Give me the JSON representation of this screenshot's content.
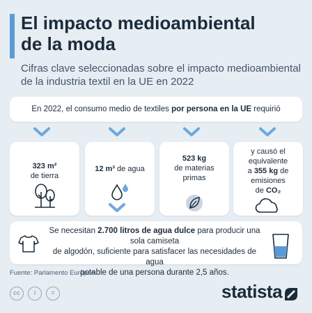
{
  "header": {
    "title_line1": "El impacto medioambiental",
    "title_line2": "de la moda",
    "subtitle_line1": "Cifras clave seleccionadas sobre el impacto medioambiental",
    "subtitle_line2": "de la industria textil en la UE en 2022"
  },
  "intro": {
    "text_before": "En 2022, el consumo medio de textiles ",
    "text_bold": "por persona en la UE",
    "text_after": " requirió"
  },
  "stats": [
    {
      "value": "323 m²",
      "label": "de tierra",
      "icon": "tree-icon"
    },
    {
      "value": "12 m³",
      "label": " de agua",
      "icon": "water-drop-icon"
    },
    {
      "value": "523 kg",
      "label_line1": "de materias",
      "label_line2": "primas",
      "icon": "leaf-icon"
    },
    {
      "line1": "y causó el",
      "line2": "equivalente",
      "line3_pre": "a ",
      "line3_bold": "355 kg",
      "line3_post": " de",
      "line4": "emisiones",
      "line5_pre": "de ",
      "line5_bold": "CO₂",
      "icon": "cloud-icon"
    }
  ],
  "bottom": {
    "t1": "Se necesitan ",
    "t2": "2.700 litros de agua dulce",
    "t3": " para producir una sola camiseta",
    "t4": "de algodón, suficiente para satisfacer las necesidades de agua",
    "t5": "potable de una persona durante 2,5 años.",
    "icon_left": "t-shirt-icon",
    "icon_right": "water-glass-icon"
  },
  "footer": {
    "source": "Fuente: Parlamento Europeo",
    "license_icons": [
      "cc",
      "i",
      "="
    ],
    "brand": "statista"
  },
  "colors": {
    "background": "#e6edf3",
    "accent": "#5b9bd5",
    "chevron": "#6fa8dc",
    "text": "#1c2b39",
    "card": "#ffffff"
  }
}
